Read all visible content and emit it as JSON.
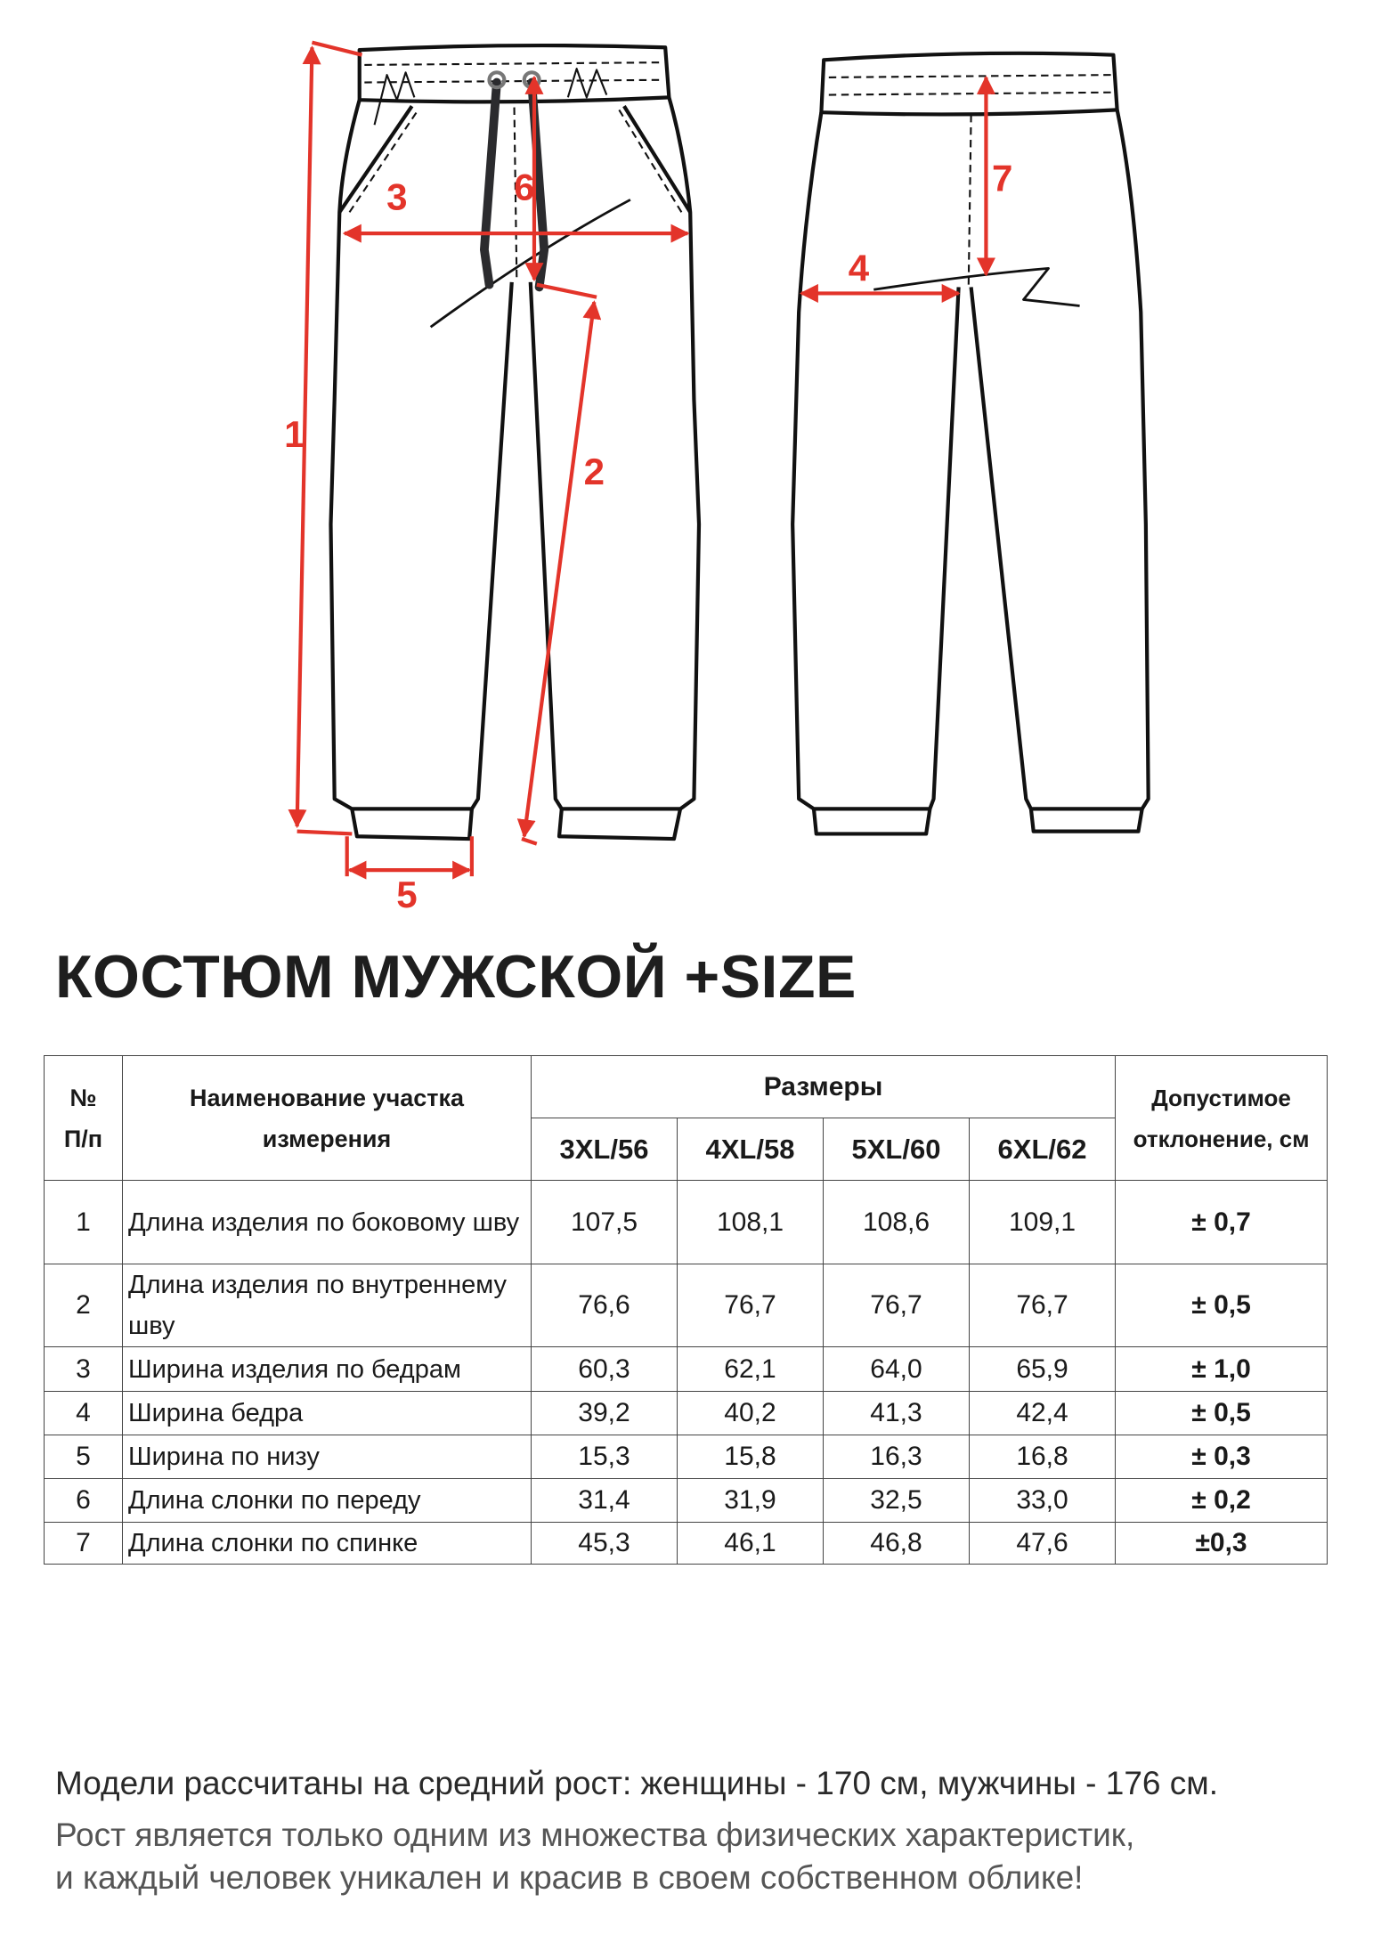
{
  "diagram": {
    "labels": [
      "1",
      "2",
      "3",
      "4",
      "5",
      "6",
      "7"
    ],
    "colors": {
      "measure": "#e3342a",
      "outline": "#111111",
      "drawstring": "#2b2b2e"
    }
  },
  "title": "КОСТЮМ МУЖСКОЙ +SIZE",
  "table": {
    "headers": {
      "num": "№ П/п",
      "name": "Наименование участка измерения",
      "sizes": "Размеры",
      "tolerance": "Допустимое отклонение, см"
    },
    "size_columns": [
      "3XL/56",
      "4XL/58",
      "5XL/60",
      "6XL/62"
    ],
    "rows": [
      {
        "num": "1",
        "name": "Длина изделия по боковому шву",
        "values": [
          "107,5",
          "108,1",
          "108,6",
          "109,1"
        ],
        "tol": "± 0,7"
      },
      {
        "num": "2",
        "name": "Длина изделия по внутреннему шву",
        "values": [
          "76,6",
          "76,7",
          "76,7",
          "76,7"
        ],
        "tol": "± 0,5"
      },
      {
        "num": "3",
        "name": "Ширина изделия по бедрам",
        "values": [
          "60,3",
          "62,1",
          "64,0",
          "65,9"
        ],
        "tol": "± 1,0"
      },
      {
        "num": "4",
        "name": "Ширина бедра",
        "values": [
          "39,2",
          "40,2",
          "41,3",
          "42,4"
        ],
        "tol": "± 0,5"
      },
      {
        "num": "5",
        "name": "Ширина по низу",
        "values": [
          "15,3",
          "15,8",
          "16,3",
          "16,8"
        ],
        "tol": "± 0,3"
      },
      {
        "num": "6",
        "name": "Длина слонки по переду",
        "values": [
          "31,4",
          "31,9",
          "32,5",
          "33,0"
        ],
        "tol": "± 0,2"
      },
      {
        "num": "7",
        "name": "Длина слонки по спинке",
        "values": [
          "45,3",
          "46,1",
          "46,8",
          "47,6"
        ],
        "tol": "±0,3"
      }
    ]
  },
  "notes": [
    "Модели рассчитаны на средний рост: женщины - 170 см, мужчины - 176 см.",
    "Рост является только одним из множества физических характеристик,",
    "и каждый человек уникален и красив в своем собственном облике!"
  ]
}
